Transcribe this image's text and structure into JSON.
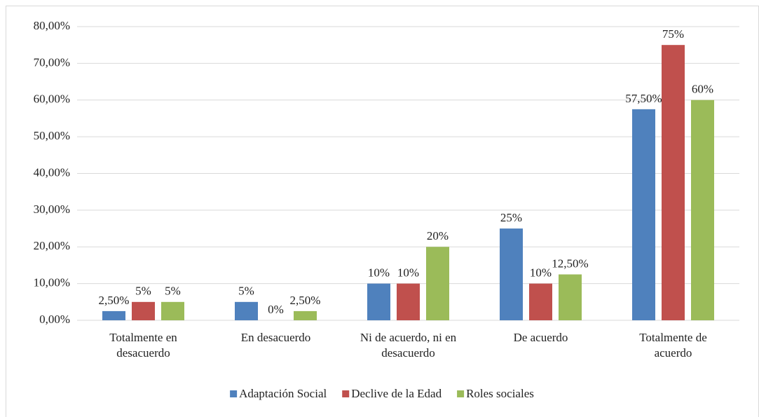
{
  "chart_data": {
    "type": "bar",
    "categories": [
      "Totalmente en desacuerdo",
      "En desacuerdo",
      "Ni de acuerdo, ni en desacuerdo",
      "De acuerdo",
      "Totalmente de acuerdo"
    ],
    "series": [
      {
        "name": "Adaptación Social",
        "color": "#4f81bd",
        "values": [
          2.5,
          5,
          10,
          25,
          57.5
        ],
        "value_labels": [
          "2,50%",
          "5%",
          "10%",
          "25%",
          "57,50%"
        ]
      },
      {
        "name": "Declive de la Edad",
        "color": "#c0504d",
        "values": [
          5,
          0,
          10,
          10,
          75
        ],
        "value_labels": [
          "5%",
          "0%",
          "10%",
          "10%",
          "75%"
        ]
      },
      {
        "name": "Roles sociales",
        "color": "#9bbb59",
        "values": [
          5,
          2.5,
          20,
          12.5,
          60
        ],
        "value_labels": [
          "5%",
          "2,50%",
          "20%",
          "12,50%",
          "60%"
        ]
      }
    ],
    "ylim": [
      0,
      80
    ],
    "yticks": [
      {
        "value": 0,
        "label": "0,00%"
      },
      {
        "value": 10,
        "label": "10,00%"
      },
      {
        "value": 20,
        "label": "20,00%"
      },
      {
        "value": 30,
        "label": "30,00%"
      },
      {
        "value": 40,
        "label": "40,00%"
      },
      {
        "value": 50,
        "label": "50,00%"
      },
      {
        "value": 60,
        "label": "60,00%"
      },
      {
        "value": 70,
        "label": "70,00%"
      },
      {
        "value": 80,
        "label": "80,00%"
      }
    ],
    "grid": true
  }
}
